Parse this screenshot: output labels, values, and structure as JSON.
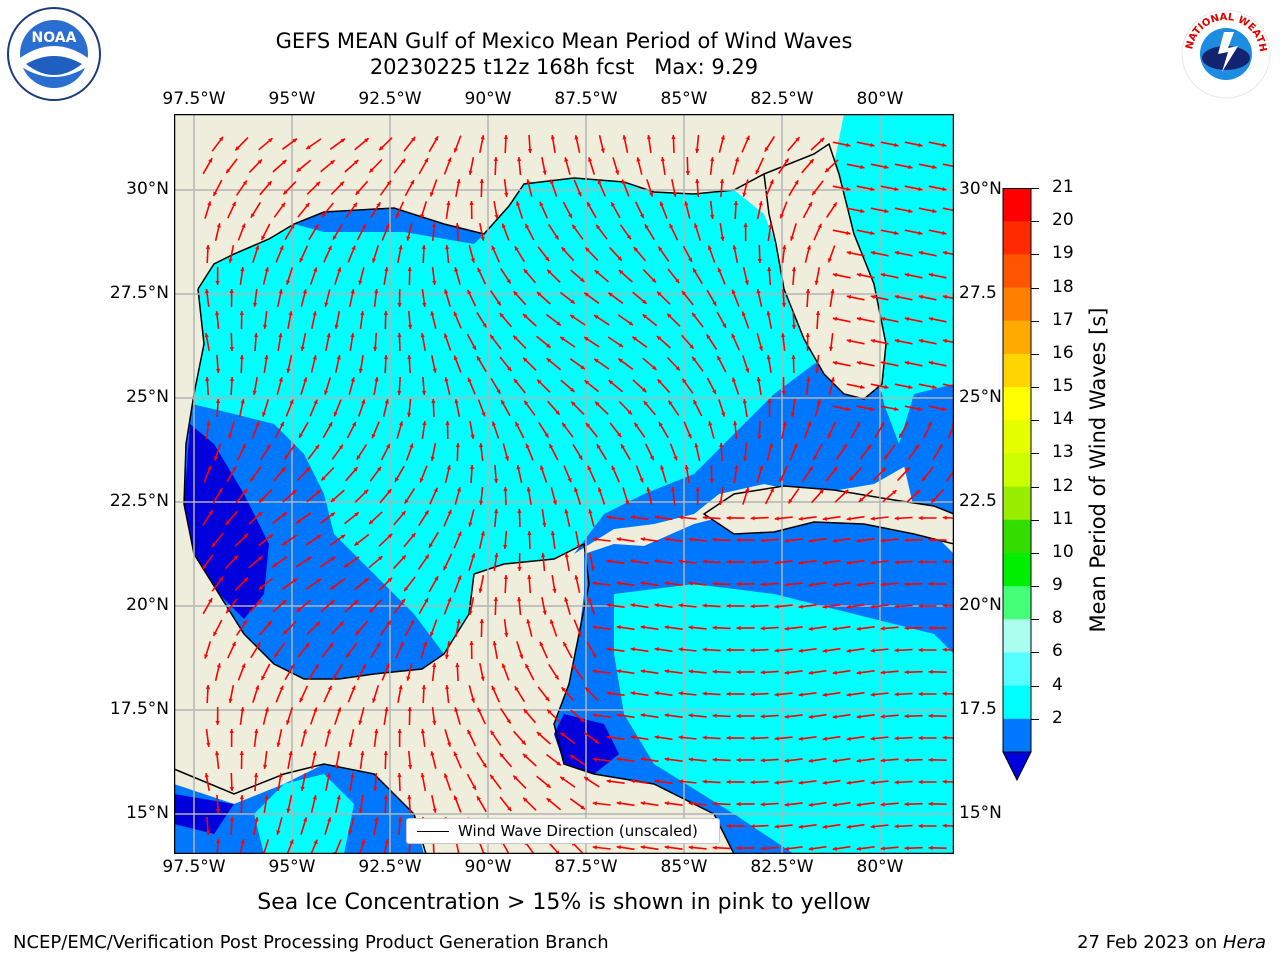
{
  "title_line1": "GEFS MEAN Gulf of Mexico Mean Period of Wind Waves",
  "title_line2": "20230225 t12z 168h fcst   Max: 9.29",
  "logos": {
    "left": "NOAA",
    "right": "NATIONAL WEATHER SERVICE"
  },
  "axes": {
    "lon_labels": [
      "97.5°W",
      "95°W",
      "92.5°W",
      "90°W",
      "87.5°W",
      "85°W",
      "82.5°W",
      "80°W"
    ],
    "lat_labels_left": [
      "30°N",
      "27.5°N",
      "25°N",
      "22.5°N",
      "20°N",
      "17.5°N",
      "15°N"
    ],
    "lat_labels_right": [
      "30°N",
      "27.5",
      "25°N",
      "22.5",
      "20°N",
      "17.5",
      "15°N"
    ]
  },
  "legend_label": "Wind Wave Direction (unscaled)",
  "colorbar": {
    "label": "Mean Period of Wind Waves [s]",
    "ticks": [
      "21",
      "20",
      "19",
      "18",
      "17",
      "16",
      "15",
      "14",
      "13",
      "12",
      "11",
      "10",
      "9",
      "8",
      "6",
      "4",
      "2"
    ],
    "colors": [
      "#ff0000",
      "#ff2a00",
      "#ff5500",
      "#ff8000",
      "#ffaa00",
      "#ffd400",
      "#ffff00",
      "#e6ff00",
      "#ccff00",
      "#99ee00",
      "#33dd00",
      "#00ee00",
      "#44ff77",
      "#aaffee",
      "#55ffff",
      "#00ffff",
      "#0077ff",
      "#0000dd"
    ]
  },
  "colors": {
    "land": "#efeddb",
    "water_light": "#00ffff",
    "water_mid": "#0077ff",
    "water_dark": "#0000dd",
    "arrow": "#ff0000",
    "grid": "#b4b4b4"
  },
  "note": "Sea Ice Concentration > 15% is shown in pink to yellow",
  "footer_left": "NCEP/EMC/Verification Post Processing Product Generation Branch",
  "footer_right_date": "27 Feb 2023 on ",
  "footer_right_machine": "Hera"
}
